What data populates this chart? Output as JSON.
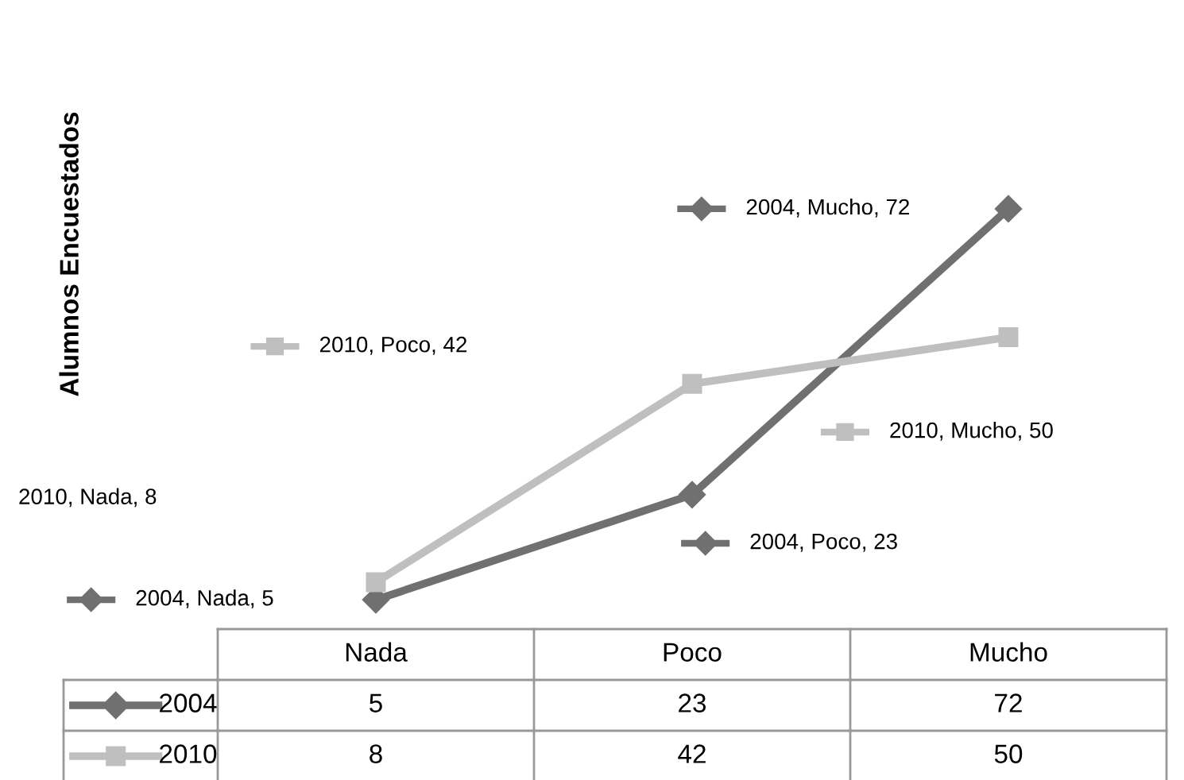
{
  "chart_data": {
    "type": "line",
    "categories": [
      "Nada",
      "Poco",
      "Mucho"
    ],
    "series": [
      {
        "name": "2004",
        "color": "#707070",
        "marker": "diamond",
        "values": [
          5,
          23,
          72
        ]
      },
      {
        "name": "2010",
        "color": "#bfbfbf",
        "marker": "square",
        "values": [
          8,
          42,
          50
        ]
      }
    ],
    "annotations": [
      "Alumnos Encuestados",
      "2004, Nada, 5",
      "2004, Poco, 23",
      "2004, Mucho, 72",
      "2010, Nada, 8",
      "2010, Poco, 42",
      "2010, Mucho, 50"
    ],
    "tick_labels": "x",
    "data_labels": true,
    "legend": "bottom"
  }
}
